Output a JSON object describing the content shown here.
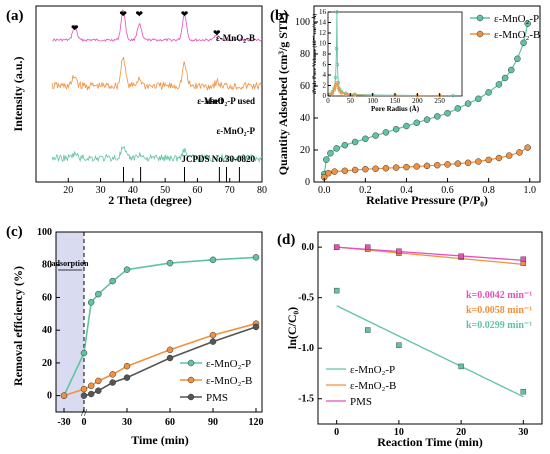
{
  "colors": {
    "green": "#5fc4a0",
    "orange": "#f0913f",
    "pink": "#e84fbf",
    "grey": "#555555",
    "blue": "#d9dbf0"
  },
  "chart_data": [
    {
      "panel": "(a)",
      "type": "line",
      "xlabel": "2 Theta (degree)",
      "ylabel": "Intensity (a.u.)",
      "xlim": [
        10,
        80
      ],
      "xticks": [
        20,
        30,
        40,
        50,
        60,
        70,
        80
      ],
      "series": [
        {
          "name": "ε-MnO₂-B",
          "color": "#e84fbf",
          "peaks": [
            22,
            37,
            42,
            56,
            66
          ]
        },
        {
          "name": "ε-MnO₂-P used",
          "color": "#f0913f",
          "peaks": [
            22,
            37,
            42,
            56,
            66
          ]
        },
        {
          "name": "ε-MnO₂-P",
          "color": "#5fc4a0",
          "peaks": [
            22,
            37,
            42,
            56,
            66
          ]
        }
      ],
      "reference": {
        "label": "JCPDS No.30-0820",
        "lines": [
          37.1,
          42.4,
          56.0,
          66.8,
          69.0,
          73.0
        ]
      },
      "markers": [
        22,
        37,
        42,
        56,
        66
      ]
    },
    {
      "panel": "(b)",
      "type": "line",
      "xlabel": "Relative Pressure (P/P₀)",
      "ylabel": "Quantity Adsorbed (cm³/g STP)",
      "xlim": [
        -0.05,
        1.05
      ],
      "ylim": [
        0,
        110
      ],
      "xticks": [
        0.0,
        0.2,
        0.4,
        0.6,
        0.8,
        1.0
      ],
      "yticks": [
        0,
        20,
        40,
        60,
        80,
        100
      ],
      "series": [
        {
          "name": "ε-MnO₂-P",
          "color": "#5fc4a0",
          "x": [
            0.0,
            0.01,
            0.03,
            0.06,
            0.1,
            0.15,
            0.2,
            0.25,
            0.3,
            0.35,
            0.4,
            0.45,
            0.5,
            0.55,
            0.6,
            0.65,
            0.7,
            0.75,
            0.8,
            0.85,
            0.88,
            0.91,
            0.94,
            0.97,
            0.99
          ],
          "y": [
            5,
            14,
            18,
            21,
            23,
            25,
            27,
            29,
            31,
            33,
            35,
            37,
            39,
            41,
            43,
            46,
            49,
            52,
            56,
            61,
            65,
            70,
            77,
            87,
            99
          ]
        },
        {
          "name": "ε-MnO₂-B",
          "color": "#f0913f",
          "x": [
            0.0,
            0.02,
            0.05,
            0.1,
            0.15,
            0.2,
            0.25,
            0.3,
            0.35,
            0.4,
            0.45,
            0.5,
            0.55,
            0.6,
            0.65,
            0.7,
            0.75,
            0.8,
            0.85,
            0.9,
            0.95,
            0.99
          ],
          "y": [
            3,
            5.5,
            6.5,
            7,
            7.5,
            8,
            8.3,
            8.6,
            9,
            9.3,
            9.7,
            10.1,
            10.5,
            11,
            11.5,
            12,
            12.8,
            13.8,
            15,
            16.5,
            18.5,
            21.5
          ]
        }
      ],
      "inset": {
        "xlabel": "Pore Radius (Å)",
        "ylabel": "dV/dr Pore Volume (10⁻³ cm³/g·Å)",
        "xlim": [
          0,
          300
        ],
        "ylim": [
          0,
          16
        ],
        "xticks": [
          0,
          50,
          100,
          150,
          200,
          250
        ],
        "yticks": [
          0,
          2,
          4,
          6,
          8,
          10,
          12,
          14,
          16
        ],
        "series": [
          {
            "name": "ε-MnO₂-P",
            "color": "#5fc4a0",
            "x": [
              5,
              10,
              14,
              17,
              19,
              20,
              21,
              23,
              26,
              30,
              40,
              60,
              100,
              150,
              200,
              250,
              280
            ],
            "y": [
              0.3,
              0.8,
              1.5,
              3.5,
              9,
              16,
              6,
              2.5,
              1.3,
              0.8,
              0.5,
              0.3,
              0.2,
              0.15,
              0.1,
              0.1,
              0.1
            ]
          },
          {
            "name": "ε-MnO₂-B",
            "color": "#f0913f",
            "x": [
              5,
              10,
              14,
              17,
              20,
              23,
              26,
              30,
              40,
              60,
              100,
              150,
              200,
              250
            ],
            "y": [
              0.2,
              0.5,
              1.2,
              2.0,
              2.5,
              1.6,
              1.0,
              0.6,
              0.3,
              0.2,
              0.1,
              0.1,
              0.05,
              0.05
            ]
          }
        ]
      },
      "legend": "top-right"
    },
    {
      "panel": "(c)",
      "type": "line",
      "xlabel": "Time (min)",
      "ylabel": "Removal efficiency (%)",
      "xticks": [
        -30,
        0,
        30,
        60,
        90,
        120
      ],
      "ylim": [
        -10,
        100
      ],
      "yticks": [
        0,
        20,
        40,
        60,
        80,
        100
      ],
      "annotation": "adsorption",
      "series": [
        {
          "name": "ε-MnO₂-P",
          "color": "#5fc4a0",
          "x": [
            -30,
            0,
            5,
            10,
            20,
            30,
            60,
            90,
            120
          ],
          "y": [
            0,
            26,
            57,
            62,
            70,
            77,
            81,
            83,
            84.5
          ]
        },
        {
          "name": "ε-MnO₂-B",
          "color": "#f0913f",
          "x": [
            -30,
            0,
            5,
            10,
            20,
            30,
            60,
            90,
            120
          ],
          "y": [
            0,
            4,
            6,
            9,
            13,
            18,
            28,
            37,
            44
          ]
        },
        {
          "name": "PMS",
          "color": "#555555",
          "x": [
            0,
            5,
            10,
            20,
            30,
            60,
            90,
            120
          ],
          "y": [
            0,
            1,
            3,
            8,
            11,
            23,
            33,
            42
          ]
        }
      ],
      "legend": "bottom-right"
    },
    {
      "panel": "(d)",
      "type": "scatter",
      "xlabel": "Reaction Time (min)",
      "ylabel": "ln(C/C₀)",
      "xlim": [
        -3,
        33
      ],
      "ylim": [
        -1.75,
        0.15
      ],
      "xticks": [
        0,
        10,
        20,
        30
      ],
      "yticks": [
        0.0,
        -0.5,
        -1.0,
        -1.5
      ],
      "annotations": [
        "k=0.0042 min⁻¹",
        "k=0.0058 min⁻¹",
        "k=0.0299 min⁻¹"
      ],
      "series": [
        {
          "name": "ε-MnO₂-P",
          "color": "#5fc4a0",
          "x": [
            0,
            5,
            10,
            20,
            30
          ],
          "y": [
            -0.43,
            -0.82,
            -0.97,
            -1.18,
            -1.43
          ],
          "fit": [
            [
              0,
              -0.58
            ],
            [
              30,
              -1.48
            ]
          ]
        },
        {
          "name": "ε-MnO₂-B",
          "color": "#f0913f",
          "x": [
            0,
            5,
            10,
            20,
            30
          ],
          "y": [
            0.0,
            -0.02,
            -0.06,
            -0.1,
            -0.16
          ],
          "fit": [
            [
              0,
              0.0
            ],
            [
              30,
              -0.17
            ]
          ]
        },
        {
          "name": "PMS",
          "color": "#e84fbf",
          "x": [
            0,
            5,
            10,
            20,
            30
          ],
          "y": [
            0.0,
            0.0,
            -0.04,
            -0.09,
            -0.12
          ],
          "fit": [
            [
              0,
              0.0
            ],
            [
              30,
              -0.13
            ]
          ]
        }
      ],
      "legend": "bottom-left"
    }
  ]
}
